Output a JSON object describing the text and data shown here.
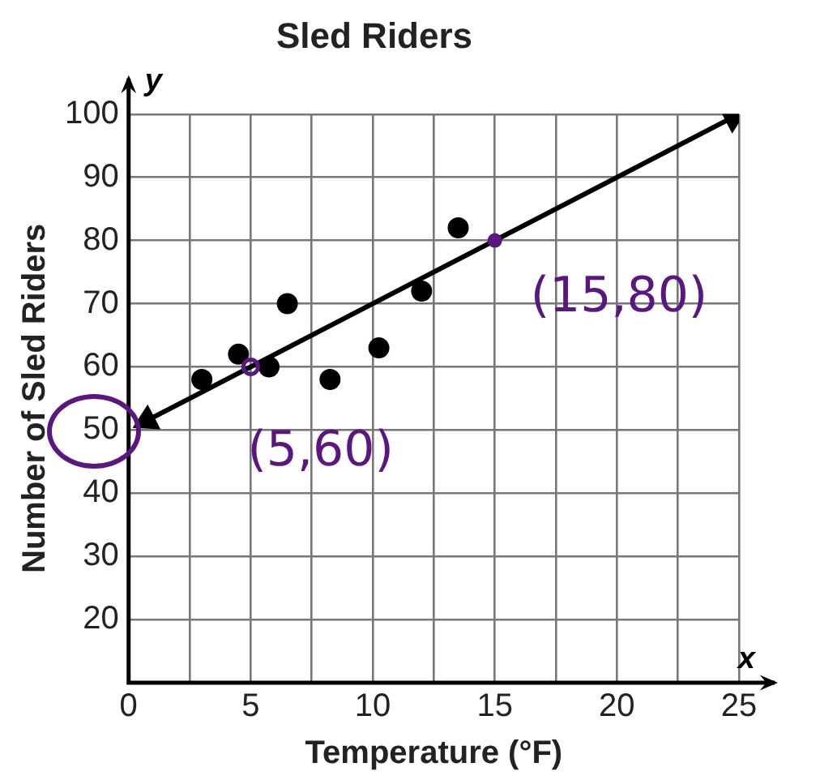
{
  "chart_data": {
    "type": "scatter",
    "title": "Sled Riders",
    "xlabel": "Temperature (°F)",
    "ylabel": "Number of Sled Riders",
    "xlim": [
      0,
      25
    ],
    "ylim": [
      10,
      100
    ],
    "xticks": [
      0,
      {
        "value": 2.5,
        "label": null
      },
      5,
      {
        "value": 7.5,
        "label": null
      },
      10,
      {
        "value": 12.5,
        "label": null
      },
      15,
      {
        "value": 17.5,
        "label": null
      },
      20,
      {
        "value": 22.5,
        "label": null
      },
      25
    ],
    "yticks": [
      {
        "value": 10,
        "label": null
      },
      20,
      30,
      40,
      50,
      60,
      70,
      80,
      90,
      100
    ],
    "grid": true,
    "legend": false,
    "marker": "circle",
    "series": [
      {
        "type": "scatter",
        "color": "#000000",
        "x": [
          3,
          4.5,
          5.75,
          6.5,
          8.25,
          10.25,
          12,
          13.5
        ],
        "values": [
          58,
          62,
          60,
          70,
          58,
          63,
          72,
          82
        ]
      },
      {
        "type": "line",
        "color": "#000000",
        "marker": "triangle",
        "x": [
          0.75,
          24.75
        ],
        "values": [
          51.5,
          99.5
        ]
      }
    ],
    "annotations": [
      {
        "text": "(5,60)",
        "x": 5,
        "y": 60
      },
      {
        "text": "(15,80)",
        "x": 15,
        "y": 80
      },
      "x",
      "y"
    ]
  }
}
